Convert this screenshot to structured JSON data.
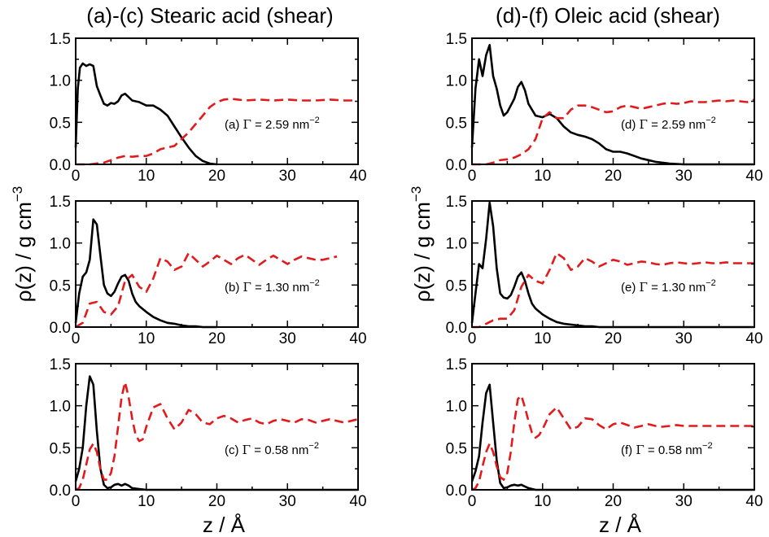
{
  "figure": {
    "titles": [
      "(a)-(c) Stearic acid (shear)",
      "(d)-(f) Oleic acid (shear)"
    ],
    "ylabel": "ρ(z) / g cm",
    "ylabel_exp": "−3",
    "xlabel": "z / Å",
    "colors": {
      "black_series": "#000000",
      "red_series": "#e31a1c"
    }
  },
  "chart_data": [
    {
      "type": "line",
      "panel": "a",
      "annotation": {
        "prefix": "(a) ",
        "gamma": "Γ",
        "mid": " = 2.59 nm",
        "exp": "−2"
      },
      "xlim": [
        0,
        40
      ],
      "ylim": [
        0,
        1.5
      ],
      "xticks": [
        "0",
        "10",
        "20",
        "30",
        "40"
      ],
      "yticks": [
        "0.0",
        "0.5",
        "1.0",
        "1.5"
      ],
      "series": [
        {
          "style": "solid",
          "color": "#000000",
          "x": [
            0,
            0.3,
            0.6,
            1,
            1.5,
            2,
            2.5,
            3,
            3.5,
            4,
            4.5,
            5,
            5.5,
            6,
            6.5,
            7,
            7.5,
            8,
            9,
            10,
            11,
            12,
            13,
            14,
            15,
            16,
            17,
            18,
            19,
            20
          ],
          "y": [
            0.2,
            0.9,
            1.15,
            1.2,
            1.17,
            1.19,
            1.17,
            0.93,
            0.82,
            0.72,
            0.7,
            0.73,
            0.72,
            0.75,
            0.82,
            0.84,
            0.8,
            0.76,
            0.74,
            0.7,
            0.7,
            0.65,
            0.58,
            0.45,
            0.32,
            0.2,
            0.1,
            0.04,
            0.01,
            0
          ]
        },
        {
          "style": "dashed",
          "color": "#e31a1c",
          "x": [
            0,
            2,
            4,
            5,
            6,
            7,
            8,
            9,
            10,
            11,
            12,
            13,
            14,
            15,
            16,
            17,
            18,
            19,
            20,
            21,
            22,
            24,
            26,
            28,
            30,
            32,
            34,
            36,
            38,
            40
          ],
          "y": [
            0,
            0,
            0.02,
            0.05,
            0.08,
            0.1,
            0.09,
            0.1,
            0.1,
            0.13,
            0.18,
            0.2,
            0.22,
            0.3,
            0.38,
            0.48,
            0.58,
            0.68,
            0.74,
            0.77,
            0.78,
            0.76,
            0.77,
            0.76,
            0.77,
            0.76,
            0.76,
            0.77,
            0.76,
            0.76
          ]
        }
      ]
    },
    {
      "type": "line",
      "panel": "b",
      "annotation": {
        "prefix": "(b) ",
        "gamma": "Γ",
        "mid": " = 1.30 nm",
        "exp": "−2"
      },
      "xlim": [
        0,
        40
      ],
      "ylim": [
        0,
        1.5
      ],
      "xticks": [
        "0",
        "10",
        "20",
        "30",
        "40"
      ],
      "yticks": [
        "0.0",
        "0.5",
        "1.0",
        "1.5"
      ],
      "series": [
        {
          "style": "solid",
          "color": "#000000",
          "x": [
            0,
            0.5,
            1,
            1.5,
            2,
            2.5,
            3,
            3.5,
            4,
            4.5,
            5,
            5.5,
            6,
            6.5,
            7,
            7.5,
            8,
            8.5,
            9,
            10,
            11,
            12,
            13,
            14,
            15,
            16,
            17,
            18,
            20
          ],
          "y": [
            0.05,
            0.4,
            0.6,
            0.65,
            0.8,
            1.28,
            1.22,
            0.85,
            0.5,
            0.4,
            0.37,
            0.42,
            0.52,
            0.6,
            0.62,
            0.55,
            0.4,
            0.3,
            0.25,
            0.18,
            0.12,
            0.08,
            0.05,
            0.04,
            0.02,
            0.01,
            0.01,
            0,
            0
          ]
        },
        {
          "style": "dashed",
          "color": "#e31a1c",
          "x": [
            0,
            1,
            2,
            3,
            4,
            5,
            6,
            7,
            8,
            9,
            10,
            11,
            12,
            13,
            14,
            15,
            16,
            17,
            18,
            19,
            20,
            21,
            22,
            23,
            24,
            25,
            26,
            27,
            28,
            29,
            30,
            31,
            32,
            33,
            34,
            35,
            36,
            37
          ],
          "y": [
            0,
            0.05,
            0.28,
            0.3,
            0.18,
            0.15,
            0.25,
            0.55,
            0.62,
            0.48,
            0.42,
            0.58,
            0.82,
            0.78,
            0.68,
            0.72,
            0.88,
            0.8,
            0.72,
            0.78,
            0.85,
            0.8,
            0.75,
            0.82,
            0.86,
            0.8,
            0.74,
            0.8,
            0.85,
            0.8,
            0.75,
            0.8,
            0.84,
            0.82,
            0.8,
            0.8,
            0.82,
            0.84
          ]
        }
      ]
    },
    {
      "type": "line",
      "panel": "c",
      "annotation": {
        "prefix": "(c) ",
        "gamma": "Γ",
        "mid": " = 0.58 nm",
        "exp": "−2"
      },
      "xlim": [
        0,
        40
      ],
      "ylim": [
        0,
        1.5
      ],
      "xticks": [
        "0",
        "10",
        "20",
        "30",
        "40"
      ],
      "yticks": [
        "0.0",
        "0.5",
        "1.0",
        "1.5"
      ],
      "series": [
        {
          "style": "solid",
          "color": "#000000",
          "x": [
            0,
            0.5,
            1,
            1.5,
            2,
            2.5,
            3,
            3.5,
            4,
            4.5,
            5,
            5.5,
            6,
            6.5,
            7,
            7.5,
            8,
            9,
            10,
            12,
            40
          ],
          "y": [
            0.1,
            0.25,
            0.5,
            1.0,
            1.35,
            1.25,
            0.7,
            0.25,
            0.06,
            0.02,
            0.03,
            0.06,
            0.07,
            0.05,
            0.07,
            0.05,
            0.02,
            0.01,
            0,
            0,
            0
          ]
        },
        {
          "style": "dashed",
          "color": "#e31a1c",
          "x": [
            0,
            0.5,
            1,
            1.5,
            2,
            2.5,
            3,
            3.5,
            4,
            4.5,
            5,
            5.5,
            6,
            6.5,
            7,
            7.5,
            8,
            8.5,
            9,
            9.5,
            10,
            11,
            12,
            13,
            14,
            15,
            16,
            17,
            18,
            19,
            20,
            21,
            22,
            23,
            24,
            25,
            26,
            27,
            28,
            29,
            30,
            31,
            32,
            33,
            34,
            35,
            36,
            37,
            38,
            39,
            40
          ],
          "y": [
            0,
            0.02,
            0.12,
            0.3,
            0.48,
            0.55,
            0.45,
            0.25,
            0.12,
            0.12,
            0.2,
            0.4,
            0.75,
            1.1,
            1.28,
            1.1,
            0.85,
            0.65,
            0.58,
            0.6,
            0.75,
            0.98,
            1.02,
            0.85,
            0.72,
            0.8,
            0.95,
            0.9,
            0.8,
            0.78,
            0.85,
            0.88,
            0.85,
            0.8,
            0.83,
            0.85,
            0.8,
            0.78,
            0.82,
            0.84,
            0.82,
            0.8,
            0.84,
            0.83,
            0.8,
            0.82,
            0.84,
            0.82,
            0.8,
            0.82,
            0.84
          ]
        }
      ]
    },
    {
      "type": "line",
      "panel": "d",
      "annotation": {
        "prefix": "(d) ",
        "gamma": "Γ",
        "mid": " = 2.59 nm",
        "exp": "−2"
      },
      "xlim": [
        0,
        40
      ],
      "ylim": [
        0,
        1.5
      ],
      "xticks": [
        "0",
        "10",
        "20",
        "30",
        "40"
      ],
      "yticks": [
        "0.0",
        "0.5",
        "1.0",
        "1.5"
      ],
      "series": [
        {
          "style": "solid",
          "color": "#000000",
          "x": [
            0,
            0.5,
            1,
            1.5,
            2,
            2.5,
            3,
            3.5,
            4,
            4.5,
            5,
            5.5,
            6,
            6.5,
            7,
            7.5,
            8,
            9,
            10,
            11,
            12,
            13,
            14,
            15,
            16,
            17,
            18,
            19,
            20,
            21,
            22,
            23,
            24,
            25,
            26,
            27,
            28,
            30,
            32,
            40
          ],
          "y": [
            0.2,
            0.9,
            1.25,
            1.05,
            1.3,
            1.42,
            1.05,
            0.9,
            0.7,
            0.58,
            0.62,
            0.7,
            0.78,
            0.92,
            0.98,
            0.88,
            0.72,
            0.58,
            0.56,
            0.6,
            0.55,
            0.45,
            0.38,
            0.35,
            0.33,
            0.3,
            0.25,
            0.18,
            0.15,
            0.15,
            0.13,
            0.1,
            0.07,
            0.05,
            0.03,
            0.02,
            0.01,
            0,
            0,
            0
          ]
        },
        {
          "style": "dashed",
          "color": "#e31a1c",
          "x": [
            0,
            2,
            3,
            4,
            5,
            6,
            7,
            8,
            9,
            10,
            11,
            12,
            13,
            14,
            15,
            16,
            17,
            18,
            19,
            20,
            21,
            22,
            23,
            24,
            25,
            26,
            27,
            28,
            29,
            30,
            31,
            32,
            33,
            34,
            35,
            36,
            37,
            38,
            39,
            40
          ],
          "y": [
            0,
            0,
            0.02,
            0.05,
            0.06,
            0.08,
            0.12,
            0.18,
            0.3,
            0.55,
            0.62,
            0.55,
            0.55,
            0.65,
            0.7,
            0.7,
            0.68,
            0.65,
            0.62,
            0.63,
            0.68,
            0.7,
            0.68,
            0.66,
            0.68,
            0.7,
            0.72,
            0.73,
            0.72,
            0.73,
            0.75,
            0.74,
            0.74,
            0.75,
            0.76,
            0.75,
            0.76,
            0.75,
            0.74,
            0.77
          ]
        }
      ]
    },
    {
      "type": "line",
      "panel": "e",
      "annotation": {
        "prefix": "(e) ",
        "gamma": "Γ",
        "mid": " = 1.30 nm",
        "exp": "−2"
      },
      "xlim": [
        0,
        40
      ],
      "ylim": [
        0,
        1.5
      ],
      "xticks": [
        "0",
        "10",
        "20",
        "30",
        "40"
      ],
      "yticks": [
        "0.0",
        "0.5",
        "1.0",
        "1.5"
      ],
      "series": [
        {
          "style": "solid",
          "color": "#000000",
          "x": [
            0,
            0.5,
            1,
            1.5,
            2,
            2.5,
            3,
            3.5,
            4,
            4.5,
            5,
            5.5,
            6,
            6.5,
            7,
            7.5,
            8,
            8.5,
            9,
            10,
            11,
            12,
            13,
            14,
            15,
            16,
            17,
            18,
            20,
            40
          ],
          "y": [
            0.05,
            0.4,
            0.75,
            0.7,
            1.05,
            1.48,
            1.2,
            0.7,
            0.4,
            0.35,
            0.34,
            0.38,
            0.48,
            0.6,
            0.65,
            0.55,
            0.4,
            0.28,
            0.22,
            0.15,
            0.1,
            0.06,
            0.04,
            0.03,
            0.02,
            0.01,
            0.01,
            0,
            0,
            0
          ]
        },
        {
          "style": "dashed",
          "color": "#e31a1c",
          "x": [
            0,
            1,
            2,
            3,
            4,
            5,
            6,
            7,
            8,
            9,
            10,
            11,
            12,
            13,
            14,
            15,
            16,
            17,
            18,
            19,
            20,
            21,
            22,
            23,
            24,
            25,
            26,
            27,
            28,
            29,
            30,
            31,
            32,
            33,
            34,
            35,
            36,
            37,
            38,
            39,
            40
          ],
          "y": [
            0,
            0,
            0.04,
            0.08,
            0.1,
            0.1,
            0.2,
            0.48,
            0.62,
            0.55,
            0.52,
            0.68,
            0.88,
            0.82,
            0.68,
            0.72,
            0.82,
            0.78,
            0.72,
            0.76,
            0.8,
            0.78,
            0.74,
            0.76,
            0.78,
            0.77,
            0.75,
            0.74,
            0.76,
            0.77,
            0.76,
            0.75,
            0.76,
            0.77,
            0.76,
            0.76,
            0.77,
            0.76,
            0.76,
            0.76,
            0.76
          ]
        }
      ]
    },
    {
      "type": "line",
      "panel": "f",
      "annotation": {
        "prefix": "(f) ",
        "gamma": "Γ",
        "mid": " = 0.58 nm",
        "exp": "−2"
      },
      "xlim": [
        0,
        40
      ],
      "ylim": [
        0,
        1.5
      ],
      "xticks": [
        "0",
        "10",
        "20",
        "30",
        "40"
      ],
      "yticks": [
        "0.0",
        "0.5",
        "1.0",
        "1.5"
      ],
      "series": [
        {
          "style": "solid",
          "color": "#000000",
          "x": [
            0,
            0.5,
            1,
            1.5,
            2,
            2.5,
            3,
            3.5,
            4,
            4.5,
            5,
            5.5,
            6,
            6.5,
            7,
            7.5,
            8,
            9,
            10,
            40
          ],
          "y": [
            0.1,
            0.22,
            0.4,
            0.8,
            1.15,
            1.25,
            0.8,
            0.35,
            0.08,
            0.02,
            0.03,
            0.05,
            0.06,
            0.05,
            0.06,
            0.04,
            0.02,
            0,
            0,
            0
          ]
        },
        {
          "style": "dashed",
          "color": "#e31a1c",
          "x": [
            0,
            0.5,
            1,
            1.5,
            2,
            2.5,
            3,
            3.5,
            4,
            4.5,
            5,
            5.5,
            6,
            6.5,
            7,
            7.5,
            8,
            8.5,
            9,
            9.5,
            10,
            11,
            12,
            13,
            14,
            15,
            16,
            17,
            18,
            19,
            20,
            21,
            22,
            23,
            24,
            25,
            26,
            27,
            28,
            29,
            30,
            32,
            34,
            36,
            38,
            40
          ],
          "y": [
            0,
            0.02,
            0.1,
            0.28,
            0.45,
            0.55,
            0.45,
            0.28,
            0.15,
            0.12,
            0.2,
            0.45,
            0.8,
            1.08,
            1.12,
            0.98,
            0.82,
            0.68,
            0.62,
            0.65,
            0.72,
            0.9,
            0.98,
            0.85,
            0.72,
            0.75,
            0.85,
            0.84,
            0.77,
            0.72,
            0.78,
            0.8,
            0.77,
            0.74,
            0.76,
            0.78,
            0.76,
            0.75,
            0.76,
            0.77,
            0.76,
            0.76,
            0.76,
            0.76,
            0.76,
            0.76
          ]
        }
      ]
    }
  ]
}
